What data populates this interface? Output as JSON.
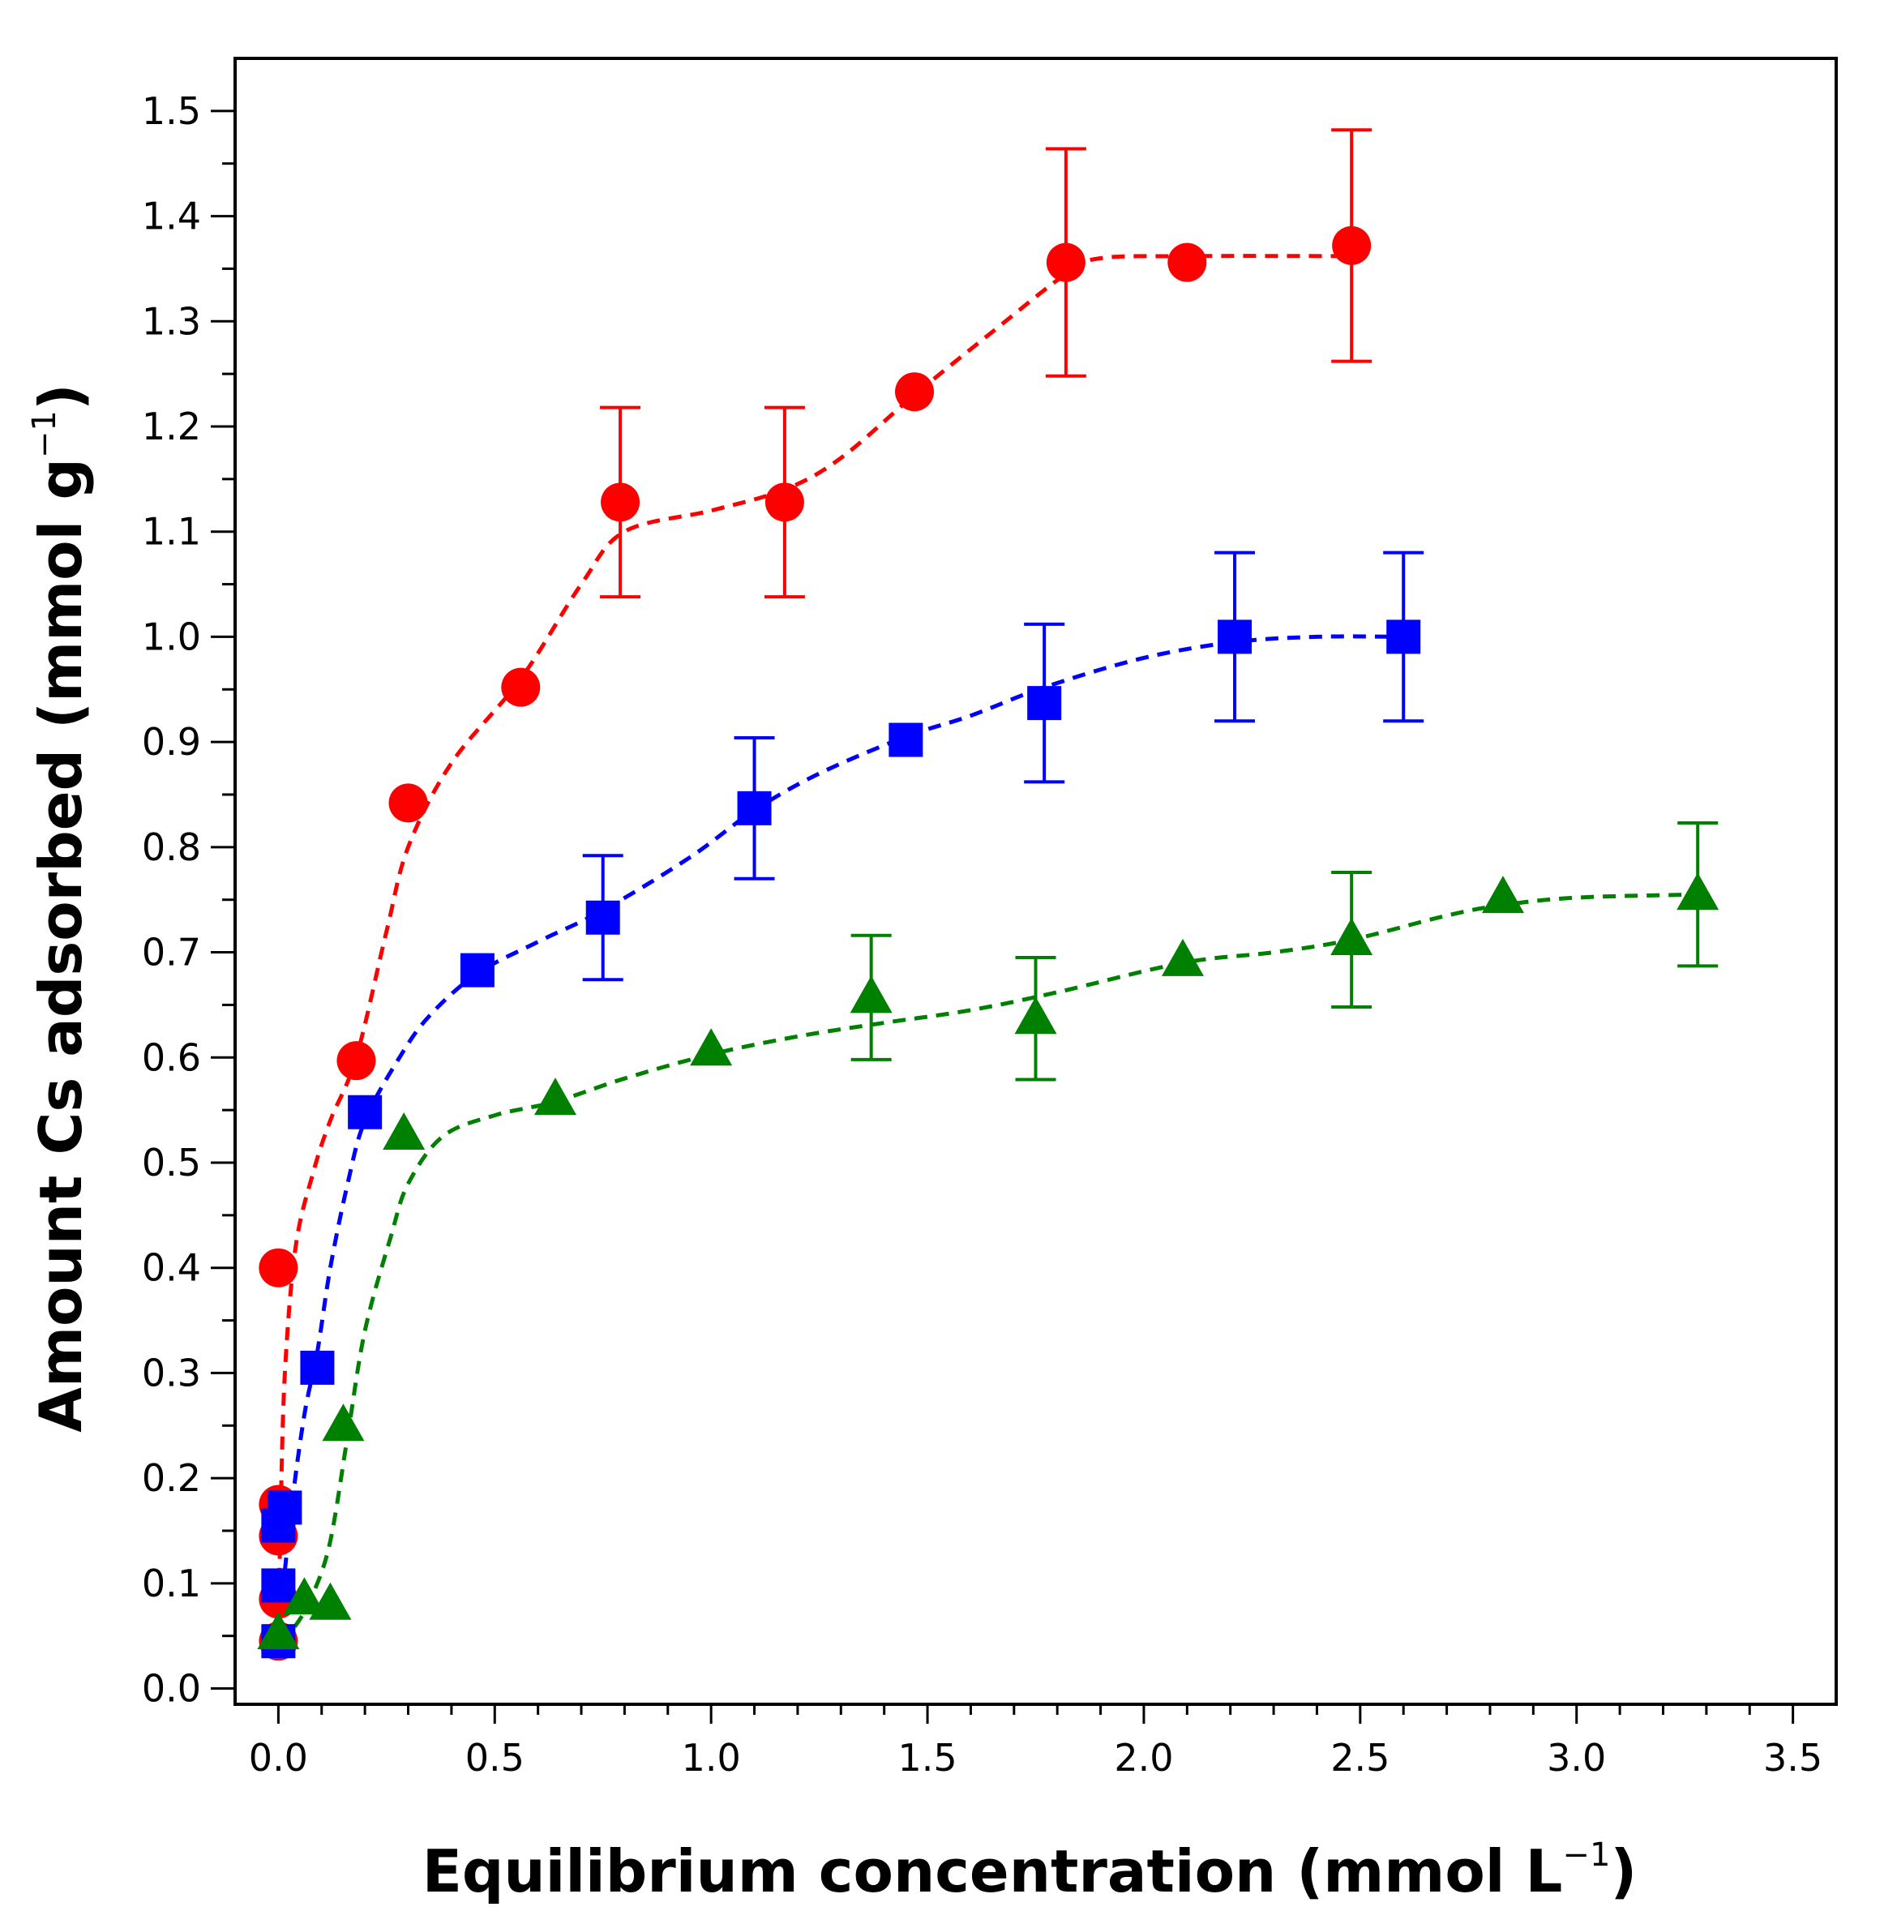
{
  "chart_data": {
    "type": "scatter",
    "title": "",
    "xlabel": {
      "main": "Equilibrium concentration (mmol L",
      "sup": "−1",
      "end": ")"
    },
    "ylabel": {
      "main": "Amount Cs adsorbed (mmol g",
      "sup": "−1",
      "end": ")"
    },
    "xlim": [
      -0.1,
      3.6
    ],
    "ylim": [
      -0.015,
      1.55
    ],
    "x_ticks": [
      "0.0",
      "0.5",
      "1.0",
      "1.5",
      "2.0",
      "2.5",
      "3.0",
      "3.5"
    ],
    "y_ticks": [
      "0.0",
      "0.1",
      "0.2",
      "0.3",
      "0.4",
      "0.5",
      "0.6",
      "0.7",
      "0.8",
      "0.9",
      "1.0",
      "1.1",
      "1.2",
      "1.3",
      "1.4",
      "1.5"
    ],
    "grid": false,
    "series": [
      {
        "name": "red circles",
        "marker": "circle",
        "color": "#ff0000",
        "points": [
          {
            "x": 0.0,
            "y": 0.045
          },
          {
            "x": 0.0,
            "y": 0.085
          },
          {
            "x": 0.0,
            "y": 0.145
          },
          {
            "x": 0.0,
            "y": 0.175
          },
          {
            "x": 0.0,
            "y": 0.4
          },
          {
            "x": 0.18,
            "y": 0.597
          },
          {
            "x": 0.3,
            "y": 0.842
          },
          {
            "x": 0.56,
            "y": 0.952
          },
          {
            "x": 0.79,
            "y": 1.128,
            "err": 0.09
          },
          {
            "x": 1.17,
            "y": 1.128,
            "err": 0.09
          },
          {
            "x": 1.47,
            "y": 1.233
          },
          {
            "x": 1.82,
            "y": 1.356,
            "err": 0.108
          },
          {
            "x": 2.1,
            "y": 1.356
          },
          {
            "x": 2.48,
            "y": 1.372,
            "err": 0.11
          }
        ],
        "fit_curve": [
          [
            0.0,
            0.04
          ],
          [
            0.005,
            0.16
          ],
          [
            0.015,
            0.3
          ],
          [
            0.04,
            0.42
          ],
          [
            0.08,
            0.49
          ],
          [
            0.12,
            0.54
          ],
          [
            0.18,
            0.6
          ],
          [
            0.25,
            0.72
          ],
          [
            0.3,
            0.8
          ],
          [
            0.4,
            0.88
          ],
          [
            0.56,
            0.96
          ],
          [
            0.7,
            1.05
          ],
          [
            0.8,
            1.1
          ],
          [
            1.0,
            1.12
          ],
          [
            1.17,
            1.14
          ],
          [
            1.3,
            1.17
          ],
          [
            1.47,
            1.23
          ],
          [
            1.65,
            1.29
          ],
          [
            1.82,
            1.345
          ],
          [
            1.9,
            1.36
          ],
          [
            2.1,
            1.362
          ],
          [
            2.48,
            1.362
          ]
        ]
      },
      {
        "name": "blue squares",
        "marker": "square",
        "color": "#0000ff",
        "points": [
          {
            "x": 0.0,
            "y": 0.045
          },
          {
            "x": 0.0,
            "y": 0.098
          },
          {
            "x": 0.0,
            "y": 0.155
          },
          {
            "x": 0.015,
            "y": 0.172
          },
          {
            "x": 0.09,
            "y": 0.305
          },
          {
            "x": 0.2,
            "y": 0.548
          },
          {
            "x": 0.46,
            "y": 0.683
          },
          {
            "x": 0.75,
            "y": 0.733,
            "err": 0.059
          },
          {
            "x": 1.1,
            "y": 0.837,
            "err": 0.067
          },
          {
            "x": 1.45,
            "y": 0.902
          },
          {
            "x": 1.77,
            "y": 0.937,
            "err": 0.075
          },
          {
            "x": 2.21,
            "y": 1.0,
            "err": 0.08
          },
          {
            "x": 2.6,
            "y": 1.0,
            "err": 0.08
          }
        ],
        "fit_curve": [
          [
            0.0,
            0.05
          ],
          [
            0.03,
            0.17
          ],
          [
            0.06,
            0.26
          ],
          [
            0.09,
            0.32
          ],
          [
            0.12,
            0.4
          ],
          [
            0.16,
            0.48
          ],
          [
            0.2,
            0.54
          ],
          [
            0.28,
            0.6
          ],
          [
            0.35,
            0.64
          ],
          [
            0.46,
            0.68
          ],
          [
            0.6,
            0.71
          ],
          [
            0.75,
            0.74
          ],
          [
            0.95,
            0.79
          ],
          [
            1.1,
            0.835
          ],
          [
            1.25,
            0.87
          ],
          [
            1.45,
            0.905
          ],
          [
            1.6,
            0.925
          ],
          [
            1.77,
            0.952
          ],
          [
            2.0,
            0.98
          ],
          [
            2.21,
            0.995
          ],
          [
            2.4,
            1.0
          ],
          [
            2.6,
            1.0
          ]
        ]
      },
      {
        "name": "green triangles",
        "marker": "triangle",
        "color": "#008000",
        "points": [
          {
            "x": 0.0,
            "y": 0.052
          },
          {
            "x": 0.06,
            "y": 0.085
          },
          {
            "x": 0.12,
            "y": 0.08
          },
          {
            "x": 0.15,
            "y": 0.25
          },
          {
            "x": 0.29,
            "y": 0.527
          },
          {
            "x": 0.64,
            "y": 0.56
          },
          {
            "x": 1.0,
            "y": 0.607
          },
          {
            "x": 1.37,
            "y": 0.657,
            "err": 0.059
          },
          {
            "x": 1.75,
            "y": 0.637,
            "err": 0.058
          },
          {
            "x": 2.09,
            "y": 0.692
          },
          {
            "x": 2.48,
            "y": 0.712,
            "err": 0.064
          },
          {
            "x": 2.83,
            "y": 0.752
          },
          {
            "x": 3.28,
            "y": 0.755,
            "err": 0.068
          }
        ],
        "fit_curve": [
          [
            0.0,
            0.045
          ],
          [
            0.04,
            0.06
          ],
          [
            0.08,
            0.09
          ],
          [
            0.12,
            0.14
          ],
          [
            0.16,
            0.24
          ],
          [
            0.2,
            0.34
          ],
          [
            0.26,
            0.43
          ],
          [
            0.3,
            0.48
          ],
          [
            0.38,
            0.525
          ],
          [
            0.5,
            0.545
          ],
          [
            0.64,
            0.558
          ],
          [
            0.8,
            0.58
          ],
          [
            1.0,
            0.603
          ],
          [
            1.2,
            0.62
          ],
          [
            1.4,
            0.633
          ],
          [
            1.6,
            0.645
          ],
          [
            1.8,
            0.662
          ],
          [
            2.09,
            0.69
          ],
          [
            2.3,
            0.7
          ],
          [
            2.48,
            0.712
          ],
          [
            2.7,
            0.735
          ],
          [
            2.83,
            0.745
          ],
          [
            3.0,
            0.752
          ],
          [
            3.28,
            0.755
          ]
        ]
      }
    ]
  }
}
